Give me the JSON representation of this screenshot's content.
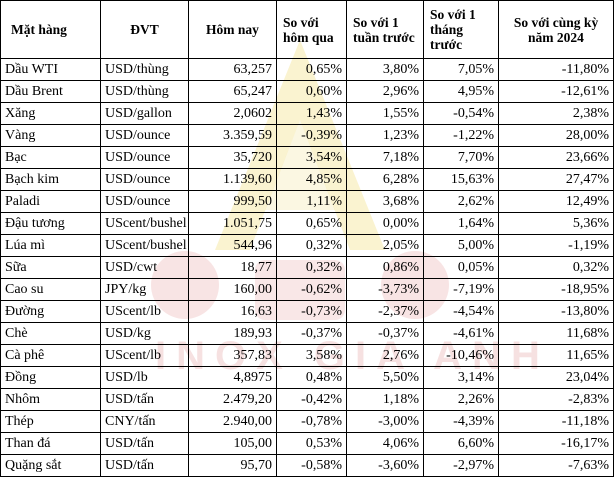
{
  "watermark_text": "INOX GIA ANH",
  "columns": [
    "Mặt hàng",
    "ĐVT",
    "Hôm nay",
    "So với hôm qua",
    "So với 1 tuần trước",
    "So với 1 tháng trước",
    "So với cùng kỳ năm 2024"
  ],
  "rows": [
    [
      "Dầu WTI",
      "USD/thùng",
      "63,257",
      "0,65%",
      "3,80%",
      "7,05%",
      "-11,80%"
    ],
    [
      "Dầu Brent",
      "USD/thùng",
      "65,247",
      "0,60%",
      "2,96%",
      "4,95%",
      "-12,61%"
    ],
    [
      "Xăng",
      "USD/gallon",
      "2,0602",
      "1,43%",
      "1,55%",
      "-0,54%",
      "2,38%"
    ],
    [
      "Vàng",
      "USD/ounce",
      "3.359,59",
      "-0,39%",
      "1,23%",
      "-1,22%",
      "28,00%"
    ],
    [
      "Bạc",
      "USD/ounce",
      "35,720",
      "3,54%",
      "7,18%",
      "7,70%",
      "23,66%"
    ],
    [
      "Bạch kim",
      "USD/ounce",
      "1.139,60",
      "4,85%",
      "6,28%",
      "15,63%",
      "27,47%"
    ],
    [
      "Paladi",
      "USD/ounce",
      "999,50",
      "1,11%",
      "3,68%",
      "2,62%",
      "12,49%"
    ],
    [
      "Đậu tương",
      "UScent/bushel",
      "1.051,75",
      "0,65%",
      "0,00%",
      "1,64%",
      "5,36%"
    ],
    [
      "Lúa mì",
      "UScent/bushel",
      "544,96",
      "0,32%",
      "2,05%",
      "5,00%",
      "-1,19%"
    ],
    [
      "Sữa",
      "USD/cwt",
      "18,77",
      "0,32%",
      "0,86%",
      "0,05%",
      "0,32%"
    ],
    [
      "Cao su",
      "JPY/kg",
      "160,00",
      "-0,62%",
      "-3,73%",
      "-7,19%",
      "-18,95%"
    ],
    [
      "Đường",
      "UScent/lb",
      "16,63",
      "-0,73%",
      "-2,37%",
      "-4,54%",
      "-13,80%"
    ],
    [
      "Chè",
      "USD/kg",
      "189,93",
      "-0,37%",
      "-0,37%",
      "-4,61%",
      "11,68%"
    ],
    [
      "Cà phê",
      "UScent/lb",
      "357,83",
      "3,58%",
      "2,76%",
      "-10,46%",
      "11,65%"
    ],
    [
      "Đồng",
      "USD/lb",
      "4,8975",
      "0,48%",
      "5,50%",
      "3,14%",
      "23,04%"
    ],
    [
      "Nhôm",
      "USD/tấn",
      "2.479,20",
      "-0,42%",
      "1,18%",
      "2,26%",
      "-2,83%"
    ],
    [
      "Thép",
      "CNY/tấn",
      "2.940,00",
      "-0,78%",
      "-3,00%",
      "-4,39%",
      "-11,18%"
    ],
    [
      "Than đá",
      "USD/tấn",
      "105,00",
      "0,53%",
      "4,06%",
      "6,60%",
      "-16,17%"
    ],
    [
      "Quặng sắt",
      "USD/tấn",
      "95,70",
      "-0,58%",
      "-3,60%",
      "-2,97%",
      "-7,63%"
    ]
  ]
}
